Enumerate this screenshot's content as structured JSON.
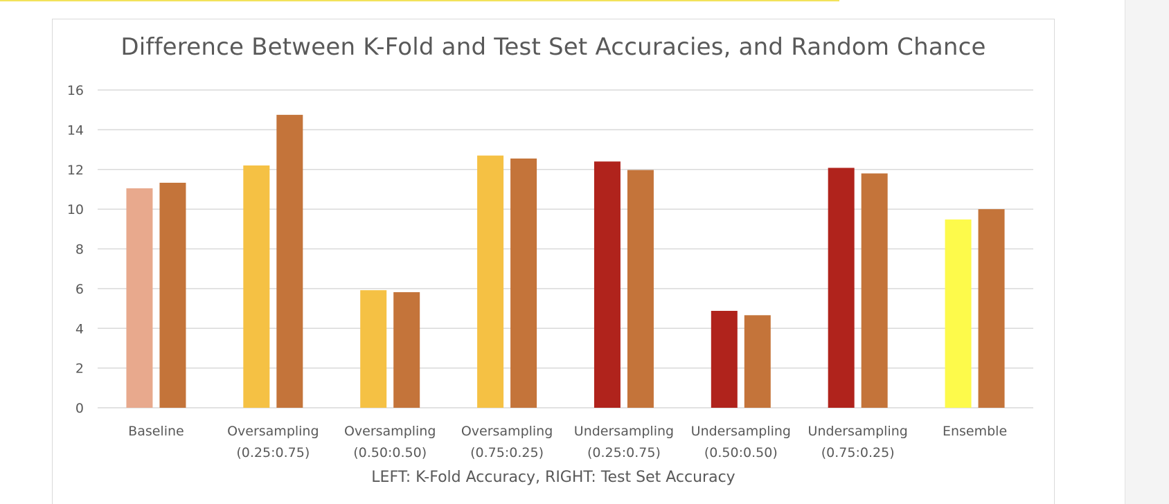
{
  "chart_data": {
    "type": "bar",
    "title": "Difference Between K-Fold and Test Set Accuracies, and Random Chance",
    "xlabel": "LEFT: K-Fold Accuracy, RIGHT: Test Set Accuracy",
    "ylabel": "",
    "ylim": [
      0,
      16
    ],
    "yticks": [
      0,
      2,
      4,
      6,
      8,
      10,
      12,
      14,
      16
    ],
    "grid": true,
    "categories": [
      [
        "Baseline"
      ],
      [
        "Oversampling",
        "(0.25:0.75)"
      ],
      [
        "Oversampling",
        "(0.50:0.50)"
      ],
      [
        "Oversampling",
        "(0.75:0.25)"
      ],
      [
        "Undersampling",
        "(0.25:0.75)"
      ],
      [
        "Undersampling",
        "(0.50:0.50)"
      ],
      [
        "Undersampling",
        "(0.75:0.25)"
      ],
      [
        "Ensemble"
      ]
    ],
    "series": [
      {
        "values": [
          11.05,
          12.2,
          5.92,
          12.7,
          12.4,
          4.88,
          12.08,
          9.48
        ],
        "colors": [
          "#e8a98d",
          "#f5c144",
          "#f5c144",
          "#f5c144",
          "#b0231c",
          "#b0231c",
          "#b0231c",
          "#fdfa4b"
        ]
      },
      {
        "values": [
          11.33,
          14.75,
          5.82,
          12.55,
          11.97,
          4.66,
          11.8,
          10.0
        ],
        "colors": [
          "#c4743a",
          "#c4743a",
          "#c4743a",
          "#c4743a",
          "#c4743a",
          "#c4743a",
          "#c4743a",
          "#c4743a"
        ]
      }
    ],
    "colors": {
      "grid": "#d9d9d9",
      "axis_text": "#595959"
    }
  }
}
